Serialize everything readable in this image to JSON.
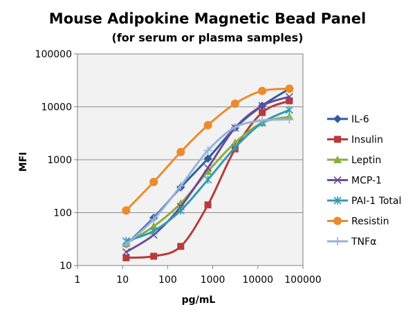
{
  "chart_data": {
    "type": "line",
    "title": "Mouse Adipokine Magnetic Bead Panel",
    "subtitle": "(for serum or plasma samples)",
    "xlabel": "pg/mL",
    "ylabel": "MFI",
    "xscale": "log",
    "yscale": "log",
    "xlim": [
      1,
      100000
    ],
    "ylim": [
      10,
      100000
    ],
    "xticks": [
      "1",
      "10",
      "100",
      "1000",
      "10000",
      "100000"
    ],
    "yticks": [
      "10",
      "100",
      "1000",
      "10000",
      "100000"
    ],
    "grid": "horizontal major lines",
    "plot_background": "#f2f2f2",
    "legend_position": "right",
    "series": [
      {
        "name": "IL-6",
        "color": "#2e5b9c",
        "marker": "diamond",
        "x": [
          12,
          49,
          195,
          781,
          3125,
          12500,
          50000
        ],
        "y": [
          25,
          80,
          300,
          1050,
          4000,
          10500,
          22000
        ]
      },
      {
        "name": "Insulin",
        "color": "#b83a3a",
        "marker": "square",
        "x": [
          12,
          49,
          195,
          781,
          3125,
          12500,
          50000
        ],
        "y": [
          14,
          15,
          23,
          140,
          1600,
          7800,
          13000
        ]
      },
      {
        "name": "Leptin",
        "color": "#8aad3f",
        "marker": "triangle",
        "x": [
          12,
          49,
          195,
          781,
          3125,
          12500,
          50000
        ],
        "y": [
          26,
          55,
          150,
          600,
          2100,
          5000,
          6500
        ]
      },
      {
        "name": "MCP-1",
        "color": "#6d4a98",
        "marker": "x",
        "x": [
          12,
          49,
          195,
          781,
          3125,
          12500,
          50000
        ],
        "y": [
          18,
          38,
          130,
          700,
          4000,
          10500,
          15500
        ]
      },
      {
        "name": "PAI-1 Total",
        "color": "#2e9bb5",
        "marker": "asterisk",
        "x": [
          12,
          49,
          195,
          781,
          3125,
          12500,
          50000
        ],
        "y": [
          29,
          45,
          110,
          420,
          1700,
          5000,
          8700
        ]
      },
      {
        "name": "Resistin",
        "color": "#ec8a2c",
        "marker": "circle",
        "x": [
          12,
          49,
          195,
          781,
          3125,
          12500,
          50000
        ],
        "y": [
          110,
          380,
          1400,
          4500,
          11500,
          20000,
          22000
        ]
      },
      {
        "name": "TNFα",
        "color": "#96b1dc",
        "marker": "plus",
        "x": [
          12,
          49,
          195,
          781,
          3125,
          12500,
          50000
        ],
        "y": [
          25,
          75,
          320,
          1500,
          4100,
          5500,
          5800
        ]
      }
    ]
  }
}
